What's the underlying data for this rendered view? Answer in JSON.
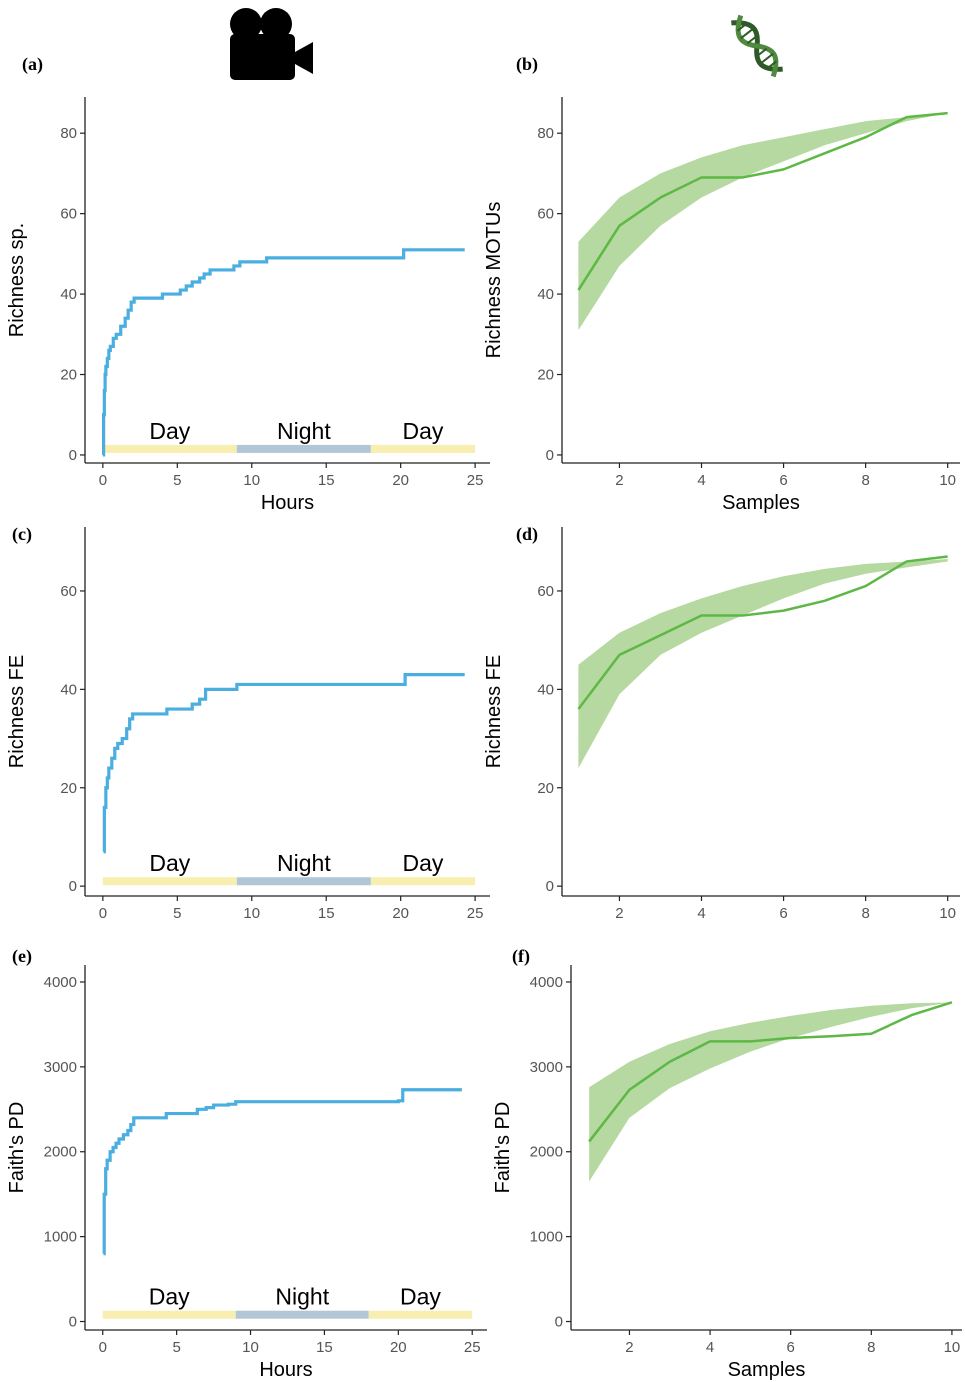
{
  "colors": {
    "video_line": "#4aaee0",
    "edna_line": "#5db845",
    "edna_band": "#b5d9a0",
    "day": "#f7eeb0",
    "night": "#b3c6d6",
    "axis": "#222222"
  },
  "icons": {
    "video": "movie-camera-icon",
    "dna": "dna-helix-icon"
  },
  "chart_data": [
    {
      "panel": "(a)",
      "type": "line",
      "xlabel": "Hours",
      "ylabel": "Richness sp.",
      "xlim": [
        -1.2,
        26
      ],
      "ylim": [
        -2,
        89
      ],
      "xticks": [
        0,
        5,
        10,
        15,
        20,
        25
      ],
      "yticks": [
        0,
        20,
        40,
        60,
        80
      ],
      "periods": [
        {
          "label": "Day",
          "start": 0,
          "end": 9,
          "kind": "day"
        },
        {
          "label": "Night",
          "start": 9,
          "end": 18,
          "kind": "night"
        },
        {
          "label": "Day",
          "start": 18,
          "end": 25,
          "kind": "day"
        }
      ],
      "period_band_y": 1.5,
      "series": [
        {
          "x": [
            0,
            0.05,
            0.1,
            0.15,
            0.2,
            0.3,
            0.4,
            0.5,
            0.7,
            0.9,
            1.2,
            1.5,
            1.7,
            1.9,
            2.1,
            3.5,
            4.0,
            4.3,
            5.2,
            5.6,
            6.0,
            6.5,
            6.8,
            7.2,
            8.5,
            8.8,
            9.2,
            10.0,
            11,
            15,
            19.8,
            20.2,
            24.3
          ],
          "y": [
            0,
            10,
            16,
            20,
            22,
            24,
            26,
            27,
            29,
            30,
            32,
            34,
            36,
            38,
            39,
            39,
            40,
            40,
            41,
            42,
            43,
            44,
            45,
            46,
            46,
            47,
            48,
            48,
            49,
            49,
            49,
            51,
            51
          ]
        }
      ]
    },
    {
      "panel": "(b)",
      "type": "line",
      "xlabel": "Samples",
      "ylabel": "Richness MOTUs",
      "xlim": [
        0.6,
        10.3
      ],
      "ylim": [
        -2,
        89
      ],
      "xticks": [
        2,
        4,
        6,
        8,
        10
      ],
      "yticks": [
        0,
        20,
        40,
        60,
        80
      ],
      "series": [
        {
          "x": [
            1,
            2,
            3,
            4,
            5,
            6,
            7,
            8,
            9,
            10
          ],
          "y": [
            41,
            57,
            64,
            69,
            69,
            71,
            75,
            79,
            84,
            85
          ],
          "lower": [
            31,
            47,
            57,
            64,
            69,
            73,
            77,
            80,
            83,
            85
          ],
          "upper": [
            53,
            64,
            70,
            74,
            77,
            79,
            81,
            83,
            84,
            85
          ]
        }
      ]
    },
    {
      "panel": "(c)",
      "type": "line",
      "xlabel": "",
      "ylabel": "Richness FE",
      "xlim": [
        -1.2,
        26
      ],
      "ylim": [
        -2,
        73
      ],
      "xticks": [
        0,
        5,
        10,
        15,
        20,
        25
      ],
      "yticks": [
        0,
        20,
        40,
        60
      ],
      "periods": [
        {
          "label": "Day",
          "start": 0,
          "end": 9,
          "kind": "day"
        },
        {
          "label": "Night",
          "start": 9,
          "end": 18,
          "kind": "night"
        },
        {
          "label": "Day",
          "start": 18,
          "end": 25,
          "kind": "day"
        }
      ],
      "period_band_y": 1,
      "series": [
        {
          "x": [
            0.05,
            0.1,
            0.2,
            0.3,
            0.4,
            0.6,
            0.8,
            1.0,
            1.3,
            1.6,
            1.8,
            2.0,
            3.5,
            4.3,
            5.0,
            6.0,
            6.5,
            6.9,
            8.0,
            9.0,
            15,
            20.0,
            20.3,
            24.3
          ],
          "y": [
            7,
            16,
            20,
            22,
            24,
            26,
            28,
            29,
            30,
            32,
            34,
            35,
            35,
            36,
            36,
            37,
            38,
            40,
            40,
            41,
            41,
            41,
            43,
            43
          ]
        }
      ]
    },
    {
      "panel": "(d)",
      "type": "line",
      "xlabel": "",
      "ylabel": "Richness FE",
      "xlim": [
        0.6,
        10.3
      ],
      "ylim": [
        -2,
        73
      ],
      "xticks": [
        2,
        4,
        6,
        8,
        10
      ],
      "yticks": [
        0,
        20,
        40,
        60
      ],
      "series": [
        {
          "x": [
            1,
            2,
            3,
            4,
            5,
            6,
            7,
            8,
            9,
            10
          ],
          "y": [
            36,
            47,
            51,
            55,
            55,
            56,
            58,
            61,
            66,
            67
          ],
          "lower": [
            24,
            39,
            47,
            51.5,
            55,
            58.5,
            61.5,
            63.5,
            64.8,
            66
          ],
          "upper": [
            45,
            51.5,
            55.5,
            58.5,
            61,
            63,
            64.5,
            65.5,
            66,
            66.5
          ]
        }
      ]
    },
    {
      "panel": "(e)",
      "type": "line",
      "xlabel": "Hours",
      "ylabel": "Faith's PD",
      "xlim": [
        -1.2,
        26
      ],
      "ylim": [
        -100,
        4200
      ],
      "xticks": [
        0,
        5,
        10,
        15,
        20,
        25
      ],
      "yticks": [
        0,
        1000,
        2000,
        3000,
        4000
      ],
      "periods": [
        {
          "label": "Day",
          "start": 0,
          "end": 9,
          "kind": "day"
        },
        {
          "label": "Night",
          "start": 9,
          "end": 18,
          "kind": "night"
        },
        {
          "label": "Day",
          "start": 18,
          "end": 25,
          "kind": "day"
        }
      ],
      "period_band_y": 80,
      "series": [
        {
          "x": [
            0.05,
            0.1,
            0.2,
            0.3,
            0.5,
            0.7,
            0.9,
            1.1,
            1.4,
            1.7,
            1.9,
            2.1,
            4.0,
            4.3,
            6.0,
            6.4,
            7.0,
            7.5,
            8.5,
            9.0,
            15,
            20.0,
            20.3,
            24.3
          ],
          "y": [
            800,
            1500,
            1800,
            1900,
            2000,
            2050,
            2100,
            2150,
            2200,
            2250,
            2320,
            2400,
            2400,
            2450,
            2450,
            2500,
            2520,
            2550,
            2560,
            2590,
            2590,
            2600,
            2730,
            2730
          ]
        }
      ]
    },
    {
      "panel": "(f)",
      "type": "line",
      "xlabel": "Samples",
      "ylabel": "Faith's PD",
      "xlim": [
        0.55,
        10.25
      ],
      "ylim": [
        -100,
        4200
      ],
      "xticks": [
        2,
        4,
        6,
        8,
        10
      ],
      "yticks": [
        0,
        1000,
        2000,
        3000,
        4000
      ],
      "series": [
        {
          "x": [
            1,
            2,
            3,
            4,
            5,
            6,
            7,
            8,
            9,
            10
          ],
          "y": [
            2120,
            2730,
            3060,
            3300,
            3300,
            3340,
            3360,
            3390,
            3610,
            3760
          ],
          "lower": [
            1650,
            2400,
            2750,
            2980,
            3180,
            3340,
            3470,
            3590,
            3690,
            3760
          ],
          "upper": [
            2760,
            3060,
            3270,
            3420,
            3520,
            3600,
            3670,
            3720,
            3750,
            3760
          ]
        }
      ]
    }
  ]
}
